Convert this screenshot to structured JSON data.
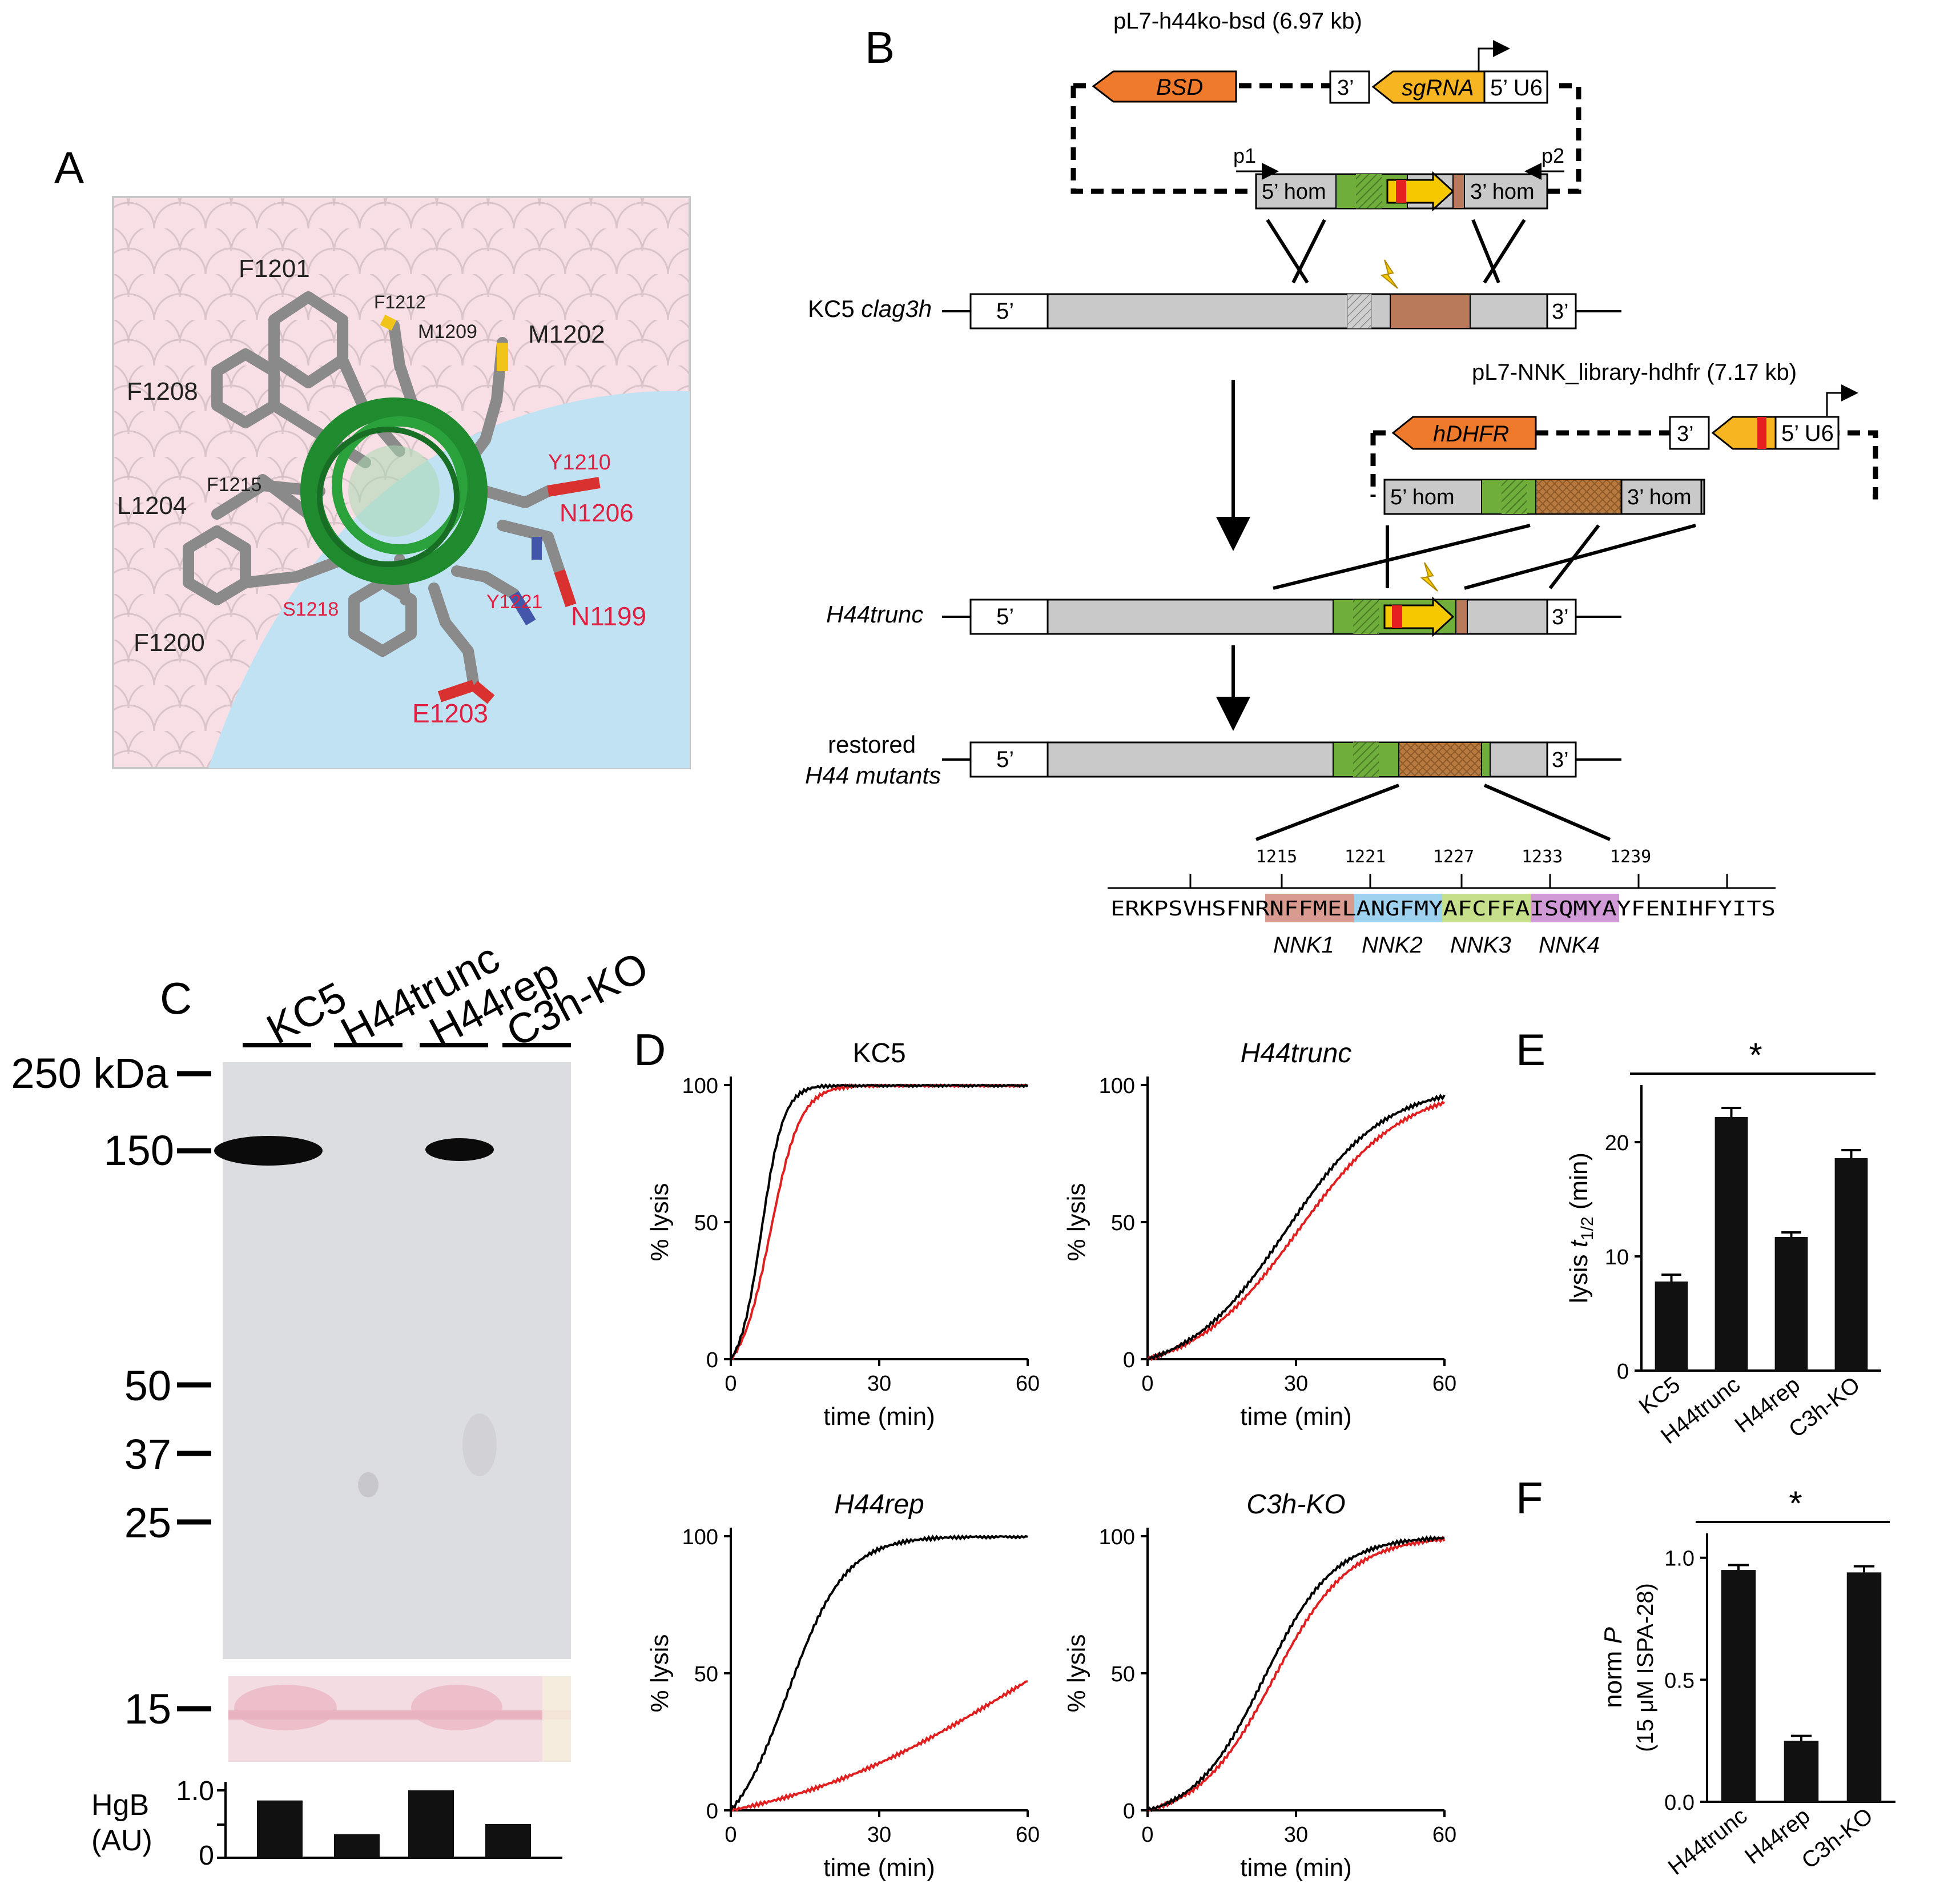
{
  "panels": {
    "A": "A",
    "B": "B",
    "C": "C",
    "D": "D",
    "E": "E",
    "F": "F"
  },
  "panelA": {
    "residues_black": [
      "F1201",
      "F1212",
      "M1209",
      "M1202",
      "F1208",
      "F1215",
      "L1204",
      "F1200"
    ],
    "residues_red": [
      "Y1210",
      "N1206",
      "S1218",
      "Y1221",
      "N1199",
      "E1203"
    ]
  },
  "panelB": {
    "plasmid1": {
      "name": "pL7-h44ko-bsd (6.97 kb)",
      "bsd": "BSD",
      "three": "3’",
      "sgrna": "sgRNA",
      "u6": "5’ U6",
      "p1": "p1",
      "p2": "p2",
      "hom5": "5’ hom",
      "hom3": "3’ hom"
    },
    "locus1": {
      "label_plain": "KC5 ",
      "label_italic": "clag3h",
      "five": "5’",
      "three": "3’"
    },
    "plasmid2": {
      "name": "pL7-NNK_library-hdhfr (7.17 kb)",
      "hdhfr": "hDHFR",
      "three": "3’",
      "u6": "5’ U6",
      "hom5": "5’ hom",
      "hom3": "3’ hom"
    },
    "locus2": {
      "label": "H44trunc",
      "five": "5’",
      "three": "3’"
    },
    "locus3": {
      "label1": "restored",
      "label2": "H44 mutants",
      "five": "5’",
      "three": "3’"
    },
    "sequence": {
      "ticks": [
        "1215",
        "1221",
        "1227",
        "1233",
        "1239"
      ],
      "before": "ERKPSVHSFNR",
      "nnk1": "NFFMEL",
      "nnk2": "ANGFMY",
      "nnk3": "AFCFFA",
      "nnk4": "ISQMYA",
      "after": "YFENIHFYITS",
      "nnk_labels": [
        "NNK1",
        "NNK2",
        "NNK3",
        "NNK4"
      ]
    }
  },
  "panelC": {
    "lanes": [
      "KC5",
      "H44trunc",
      "H44rep",
      "C3h-KO"
    ],
    "markers": [
      "250 kDa",
      "150",
      "50",
      "37",
      "25"
    ],
    "ponceau_marker": "15",
    "hgb_label1": "HgB",
    "hgb_label2": "(AU)",
    "hgb_ticks": [
      "1.0",
      "0"
    ],
    "hgb_values": [
      0.85,
      0.35,
      1.0,
      0.5
    ]
  },
  "panelD": {
    "ylabel": "% lysis",
    "xlabel": "time (min)",
    "xticks": [
      "0",
      "30",
      "60"
    ],
    "yticks": [
      "0",
      "50",
      "100"
    ],
    "plots": [
      {
        "title": "KC5",
        "italic": false,
        "black_t50": 6.2,
        "black_k": 0.45,
        "red_t50": 8.0,
        "red_k": 0.33,
        "red_max": 100
      },
      {
        "title": "H44trunc",
        "italic": true,
        "black_t50": 28.0,
        "black_k": 0.1,
        "red_t50": 30.5,
        "red_k": 0.093,
        "red_max": 100
      },
      {
        "title": "H44rep",
        "italic": true,
        "black_t50": 11.5,
        "black_k": 0.17,
        "red_t50": 58,
        "red_k": 0.04,
        "red_max": 100
      },
      {
        "title": "C3h-KO",
        "italic": true,
        "black_t50": 23.5,
        "black_k": 0.14,
        "red_t50": 25.5,
        "red_k": 0.13,
        "red_max": 100
      }
    ]
  },
  "chart_data": [
    {
      "type": "bar",
      "categories": [
        "KC5",
        "H44trunc",
        "H44rep",
        "C3h-KO"
      ],
      "values": [
        7.8,
        22.2,
        11.7,
        18.6
      ],
      "errors": [
        0.6,
        0.8,
        0.4,
        0.7
      ],
      "ylabel_pre": "lysis ",
      "ylabel_italic": "t",
      "ylabel_sub": "1/2",
      "ylabel_post": " (min)",
      "ylim": [
        0,
        25
      ],
      "yticks": [
        "0",
        "10",
        "20"
      ],
      "significance": "*"
    },
    {
      "type": "bar",
      "categories": [
        "H44trunc",
        "H44rep",
        "C3h-KO"
      ],
      "values": [
        0.95,
        0.25,
        0.94
      ],
      "errors": [
        0.02,
        0.02,
        0.025
      ],
      "ylabel_line1_pre": "norm ",
      "ylabel_line1_italic": "P",
      "ylabel_line2": "(15 μM ISPA-28)",
      "ylim": [
        0,
        1.1
      ],
      "yticks": [
        "0.0",
        "0.5",
        "1.0"
      ],
      "significance": "*"
    }
  ]
}
